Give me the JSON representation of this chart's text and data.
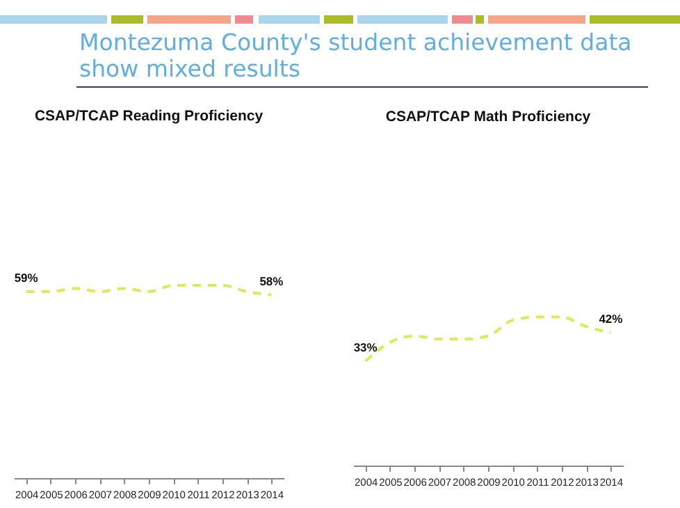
{
  "chart_data": [
    {
      "type": "line",
      "title": "CSAP/TCAP Reading Proficiency",
      "annotations": [
        "Montezuma County's student achievement data show mixed results"
      ],
      "categories": [
        "2004",
        "2005",
        "2006",
        "2007",
        "2008",
        "2009",
        "2010",
        "2011",
        "2012",
        "2013",
        "2014"
      ],
      "line_style": "dashed",
      "series": [
        {
          "color": "#dde85a",
          "values": [
            59,
            59,
            60,
            59,
            60,
            59,
            61,
            61,
            61,
            59,
            58
          ],
          "value_labels": [
            "59%",
            null,
            null,
            null,
            null,
            null,
            null,
            null,
            null,
            null,
            "58%"
          ]
        }
      ]
    },
    {
      "type": "line",
      "title": "CSAP/TCAP Math Proficiency",
      "categories": [
        "2004",
        "2005",
        "2006",
        "2007",
        "2008",
        "2009",
        "2010",
        "2011",
        "2012",
        "2013",
        "2014"
      ],
      "line_style": "dashed",
      "series": [
        {
          "color": "#dde85a",
          "values": [
            33,
            39,
            41,
            40,
            40,
            41,
            46,
            47,
            47,
            44,
            42
          ],
          "value_labels": [
            "33%",
            null,
            null,
            null,
            null,
            null,
            null,
            null,
            null,
            null,
            "42%"
          ]
        }
      ]
    }
  ]
}
